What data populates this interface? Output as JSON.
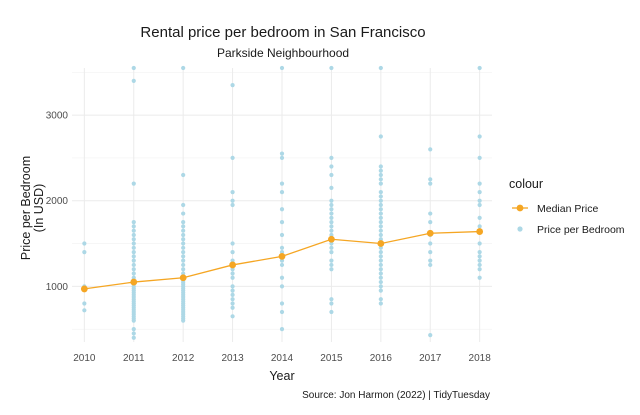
{
  "chart_data": {
    "type": "scatter",
    "title": "Rental price per bedroom in San Francisco",
    "subtitle": "Parkside Neighbourhood",
    "xlabel": "Year",
    "ylabel": "Price per Bedroom\n(In USD)",
    "caption": "Source: Jon Harmon (2022) | TidyTuesday",
    "xlim": [
      2009.75,
      2018.25
    ],
    "ylim": [
      350,
      3550
    ],
    "x_ticks": [
      2010,
      2011,
      2012,
      2013,
      2014,
      2015,
      2016,
      2017,
      2018
    ],
    "y_ticks": [
      1000,
      2000,
      3000
    ],
    "grid": true,
    "legend": {
      "title": "colour",
      "placement": "right",
      "entries": [
        {
          "label": "Median Price",
          "color": "#F5A623",
          "kind": "line-point"
        },
        {
          "label": "Price per Bedroom",
          "color": "#ADD8E6",
          "kind": "point"
        }
      ]
    },
    "series": [
      {
        "name": "Price per Bedroom",
        "kind": "points",
        "color": "#ADD8E6",
        "points": [
          {
            "x": 2010,
            "y": [
              1500,
              1400,
              1000,
              980,
              960,
              800,
              720
            ]
          },
          {
            "x": 2011,
            "y": [
              3550,
              3400,
              2200,
              1750,
              1700,
              1650,
              1600,
              1550,
              1500,
              1450,
              1400,
              1350,
              1300,
              1250,
              1200,
              1150,
              1100,
              1050,
              1000,
              975,
              950,
              925,
              900,
              875,
              850,
              825,
              800,
              775,
              750,
              725,
              700,
              675,
              650,
              625,
              600,
              500,
              450,
              400
            ]
          },
          {
            "x": 2012,
            "y": [
              3550,
              2300,
              1950,
              1850,
              1750,
              1700,
              1650,
              1600,
              1550,
              1500,
              1450,
              1400,
              1350,
              1300,
              1250,
              1200,
              1150,
              1100,
              1075,
              1050,
              1025,
              1000,
              975,
              950,
              925,
              900,
              875,
              850,
              825,
              800,
              775,
              750,
              725,
              700,
              675,
              650,
              625,
              600
            ]
          },
          {
            "x": 2013,
            "y": [
              3350,
              2500,
              2100,
              2000,
              1950,
              1500,
              1400,
              1300,
              1250,
              1200,
              1150,
              1100,
              1000,
              950,
              900,
              850,
              800,
              750,
              650
            ]
          },
          {
            "x": 2014,
            "y": [
              3550,
              2550,
              2500,
              2200,
              2100,
              1900,
              1750,
              1600,
              1450,
              1400,
              1350,
              1300,
              1250,
              1100,
              1000,
              800,
              700,
              500
            ]
          },
          {
            "x": 2015,
            "y": [
              3550,
              2500,
              2400,
              2300,
              2150,
              2000,
              1950,
              1900,
              1850,
              1800,
              1750,
              1700,
              1650,
              1600,
              1550,
              1500,
              1450,
              1400,
              1300,
              1250,
              1200,
              850,
              800,
              700
            ]
          },
          {
            "x": 2016,
            "y": [
              3550,
              2750,
              2400,
              2350,
              2300,
              2250,
              2200,
              2100,
              2050,
              2000,
              1950,
              1900,
              1850,
              1800,
              1750,
              1700,
              1650,
              1600,
              1550,
              1500,
              1450,
              1400,
              1350,
              1300,
              1250,
              1200,
              1150,
              1100,
              1050,
              1000,
              950,
              850,
              800
            ]
          },
          {
            "x": 2017,
            "y": [
              2600,
              2250,
              2200,
              1850,
              1750,
              1600,
              1500,
              1400,
              1300,
              1250,
              430
            ]
          },
          {
            "x": 2018,
            "y": [
              3550,
              2750,
              2500,
              2200,
              2100,
              2000,
              1950,
              1800,
              1700,
              1500,
              1400,
              1350,
              1300,
              1250,
              1200,
              1100
            ]
          }
        ]
      },
      {
        "name": "Median Price",
        "kind": "line",
        "color": "#F5A623",
        "x": [
          2010,
          2011,
          2012,
          2013,
          2014,
          2015,
          2016,
          2017,
          2018
        ],
        "y": [
          970,
          1050,
          1100,
          1250,
          1350,
          1550,
          1500,
          1620,
          1640
        ]
      }
    ]
  }
}
